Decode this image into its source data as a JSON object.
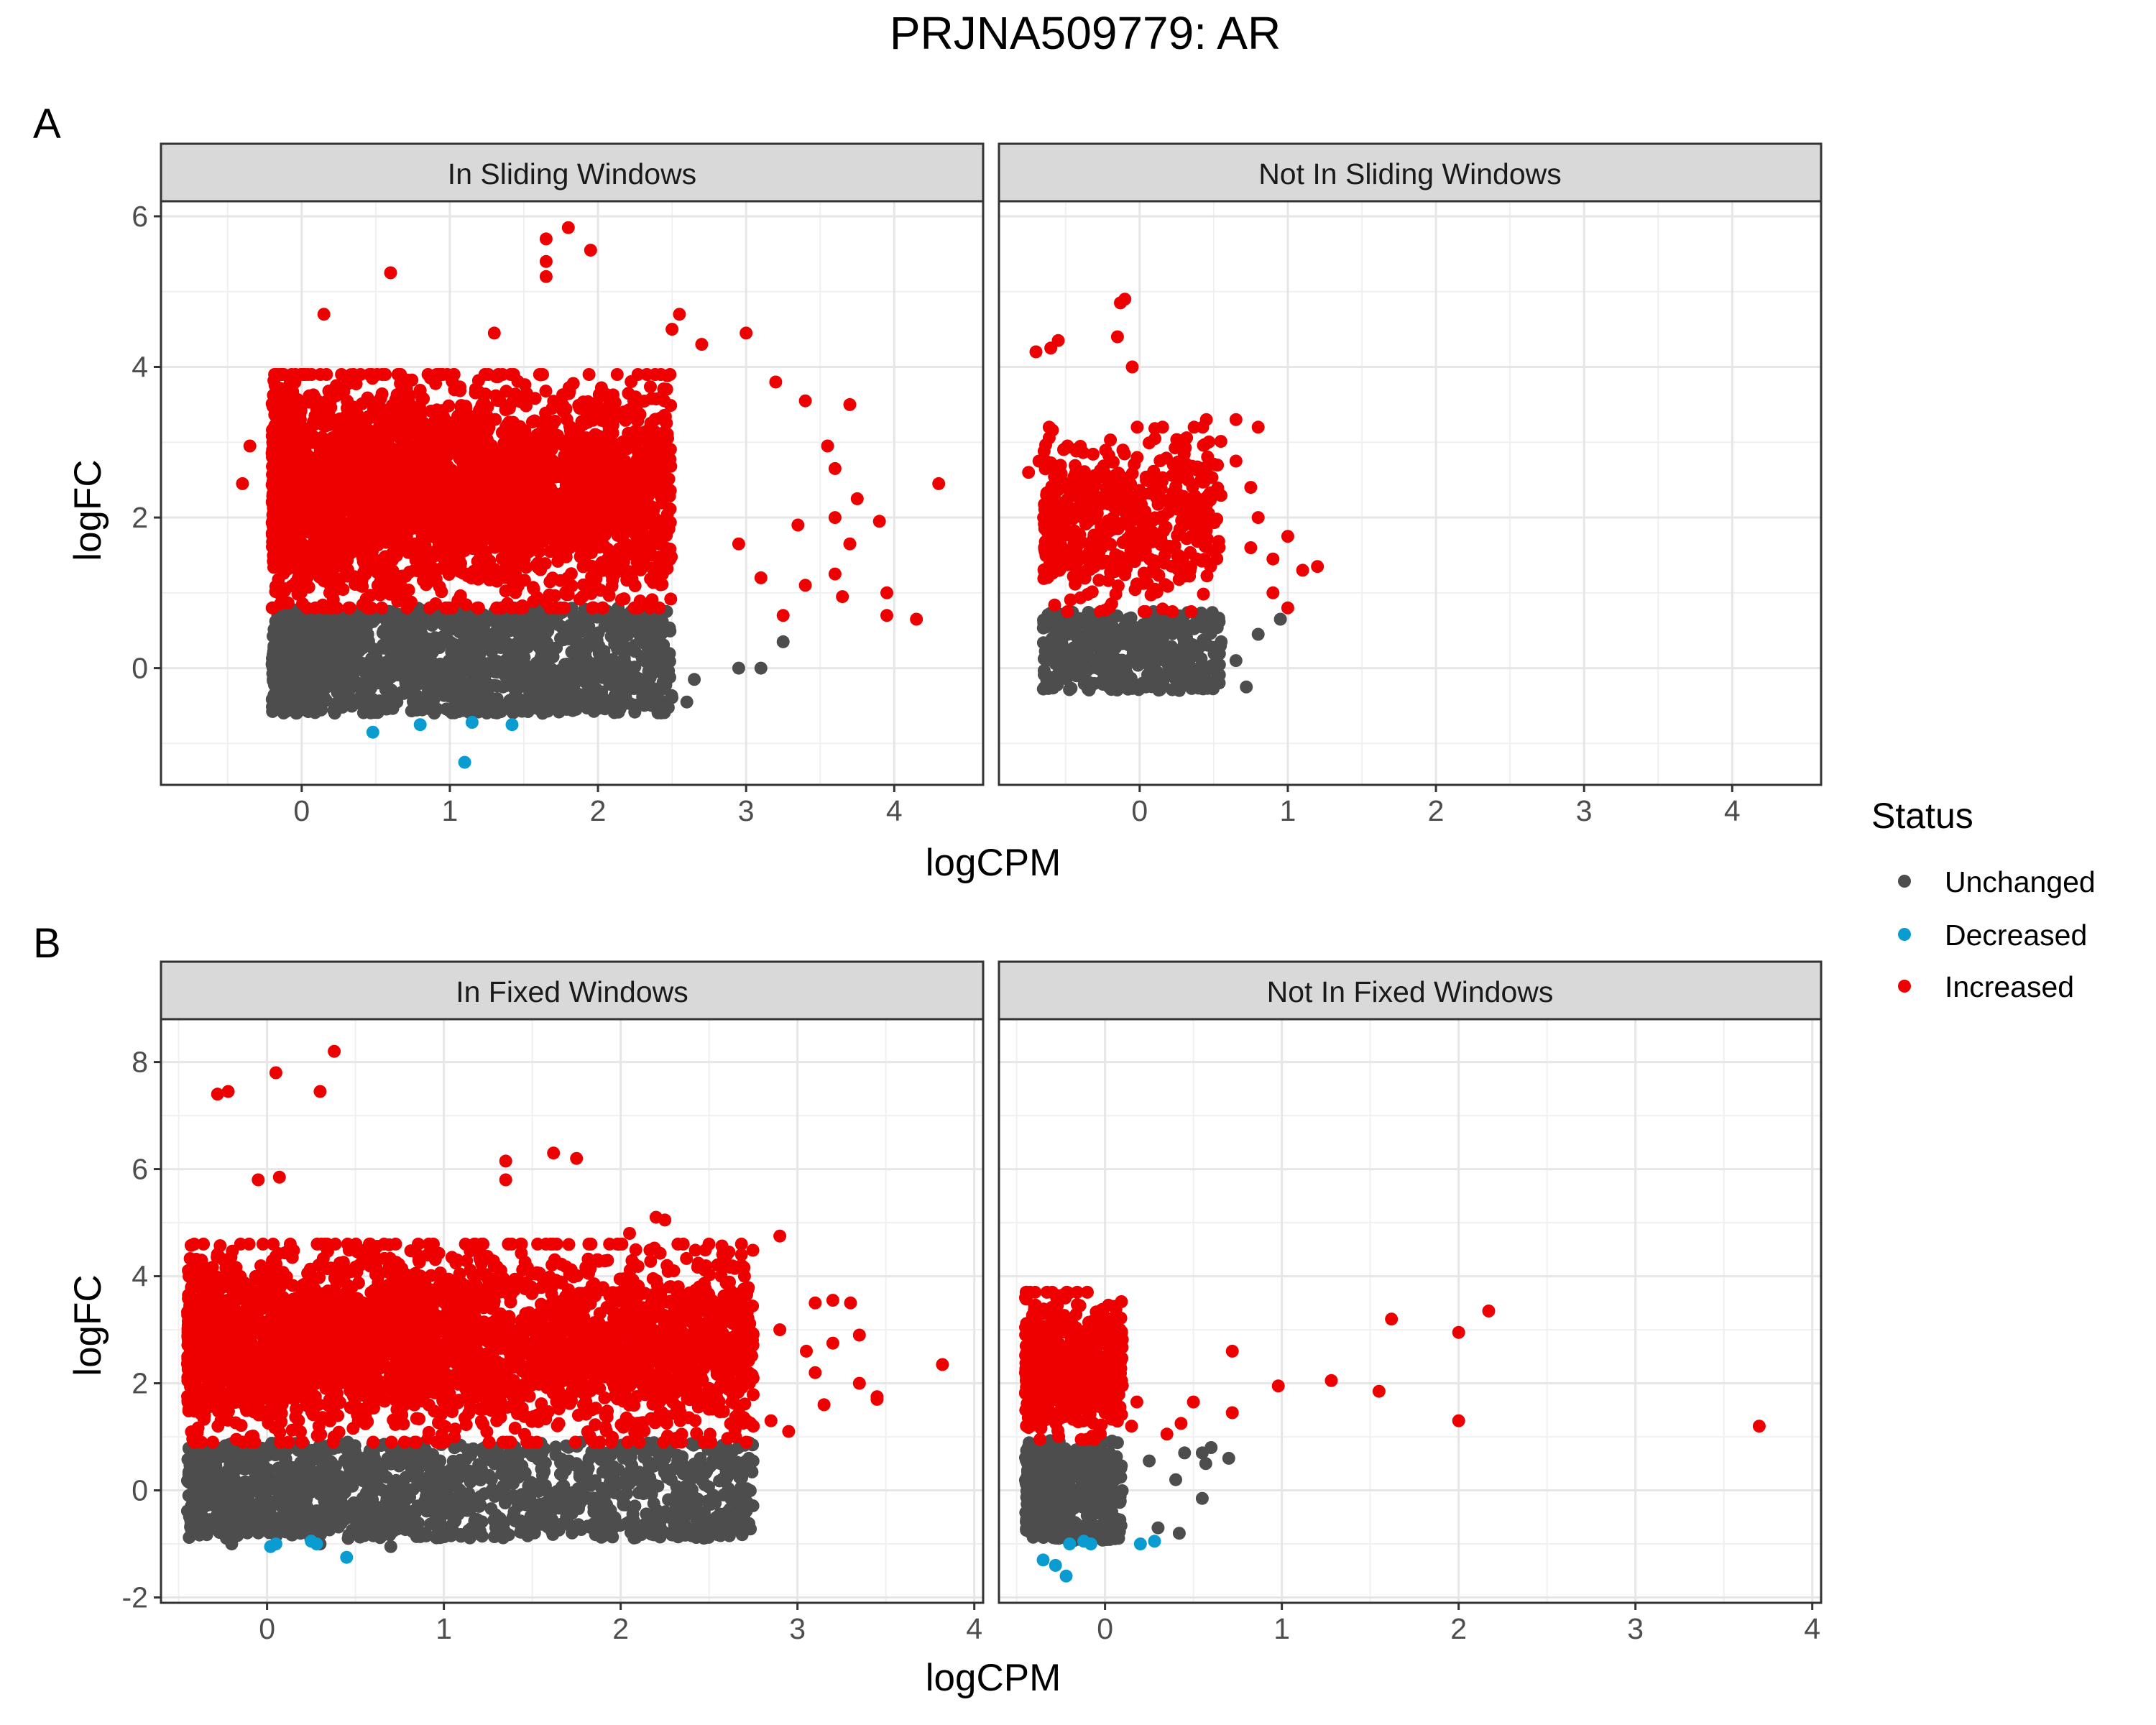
{
  "title": "PRJNA509779: AR",
  "legend": {
    "title": "Status",
    "items": [
      {
        "label": "Unchanged",
        "color": "#4D4D4D"
      },
      {
        "label": "Decreased",
        "color": "#0A9CD0"
      },
      {
        "label": "Increased",
        "color": "#EE0000"
      }
    ]
  },
  "chart_data": [
    {
      "type": "scatter",
      "tag": "A",
      "xlabel": "logCPM",
      "ylabel": "logFC",
      "xlim": [
        -0.95,
        4.6
      ],
      "ylim": [
        -1.55,
        6.2
      ],
      "xticks": [
        0,
        1,
        2,
        3,
        4
      ],
      "yticks": [
        0,
        2,
        4,
        6
      ],
      "grid": true,
      "legend_position": "right",
      "panels": [
        {
          "strip": "In Sliding Windows",
          "cloud_x": [
            -0.2,
            2.5
          ],
          "increased_range": [
            0.8,
            3.9
          ],
          "unchanged_range": [
            -0.6,
            0.8
          ],
          "increased_outliers": [
            [
              1.8,
              5.85
            ],
            [
              1.65,
              5.7
            ],
            [
              1.95,
              5.55
            ],
            [
              1.65,
              5.4
            ],
            [
              1.65,
              5.2
            ],
            [
              0.6,
              5.25
            ],
            [
              1.3,
              4.45
            ],
            [
              2.55,
              4.7
            ],
            [
              0.15,
              4.7
            ],
            [
              2.5,
              4.5
            ],
            [
              3.0,
              4.45
            ],
            [
              2.7,
              4.3
            ],
            [
              3.2,
              3.8
            ],
            [
              3.4,
              3.55
            ],
            [
              3.7,
              3.5
            ],
            [
              3.55,
              2.95
            ],
            [
              3.6,
              2.65
            ],
            [
              3.75,
              2.25
            ],
            [
              3.6,
              2.0
            ],
            [
              3.35,
              1.9
            ],
            [
              3.9,
              1.95
            ],
            [
              3.7,
              1.65
            ],
            [
              3.6,
              1.25
            ],
            [
              3.65,
              0.95
            ],
            [
              3.4,
              1.1
            ],
            [
              4.3,
              2.45
            ],
            [
              3.95,
              1.0
            ],
            [
              3.95,
              0.7
            ],
            [
              4.15,
              0.65
            ],
            [
              -0.35,
              2.95
            ],
            [
              -0.4,
              2.45
            ],
            [
              2.95,
              1.65
            ],
            [
              3.1,
              1.2
            ],
            [
              3.25,
              0.7
            ]
          ],
          "unchanged_outliers": [
            [
              1.7,
              -0.35
            ],
            [
              2.0,
              -0.5
            ],
            [
              2.6,
              -0.45
            ],
            [
              2.95,
              0.0
            ],
            [
              3.1,
              0.0
            ],
            [
              3.25,
              0.35
            ],
            [
              2.45,
              0.0
            ],
            [
              2.65,
              -0.15
            ],
            [
              -0.1,
              0.35
            ],
            [
              0.05,
              -0.2
            ]
          ],
          "decreased": [
            [
              0.48,
              -0.85
            ],
            [
              0.8,
              -0.75
            ],
            [
              1.15,
              -0.72
            ],
            [
              1.42,
              -0.75
            ],
            [
              1.1,
              -1.25
            ]
          ]
        },
        {
          "strip": "Not In Sliding Windows",
          "cloud_x": [
            -0.65,
            0.55
          ],
          "increased_range": [
            0.75,
            3.2
          ],
          "unchanged_range": [
            -0.3,
            0.75
          ],
          "increased_outliers": [
            [
              -0.1,
              4.9
            ],
            [
              -0.13,
              4.85
            ],
            [
              -0.15,
              4.4
            ],
            [
              -0.55,
              4.35
            ],
            [
              -0.6,
              4.25
            ],
            [
              -0.7,
              4.2
            ],
            [
              -0.05,
              4.0
            ],
            [
              0.45,
              3.3
            ],
            [
              0.65,
              3.3
            ],
            [
              0.8,
              3.2
            ],
            [
              0.65,
              2.75
            ],
            [
              0.75,
              2.4
            ],
            [
              0.8,
              2.0
            ],
            [
              1.0,
              1.75
            ],
            [
              1.2,
              1.35
            ],
            [
              1.1,
              1.3
            ],
            [
              0.9,
              1.0
            ],
            [
              1.0,
              0.8
            ],
            [
              0.75,
              1.6
            ],
            [
              0.9,
              1.45
            ],
            [
              -0.75,
              2.6
            ],
            [
              -0.68,
              2.75
            ],
            [
              -0.5,
              1.85
            ]
          ],
          "unchanged_outliers": [
            [
              0.72,
              -0.25
            ],
            [
              0.65,
              0.1
            ],
            [
              0.55,
              0.35
            ],
            [
              0.8,
              0.45
            ],
            [
              -0.25,
              0.6
            ],
            [
              0.95,
              0.65
            ]
          ],
          "decreased": []
        }
      ]
    },
    {
      "type": "scatter",
      "tag": "B",
      "xlabel": "logCPM",
      "ylabel": "logFC",
      "xlim": [
        -0.6,
        4.05
      ],
      "ylim": [
        -2.1,
        8.8
      ],
      "xticks": [
        0,
        1,
        2,
        3,
        4
      ],
      "yticks": [
        -2,
        0,
        2,
        4,
        6,
        8
      ],
      "grid": true,
      "legend_position": "right",
      "panels": [
        {
          "strip": "In Fixed Windows",
          "cloud_x": [
            -0.45,
            2.75
          ],
          "increased_range": [
            0.9,
            4.6
          ],
          "unchanged_range": [
            -0.9,
            0.9
          ],
          "increased_outliers": [
            [
              0.38,
              8.2
            ],
            [
              0.05,
              7.8
            ],
            [
              0.3,
              7.45
            ],
            [
              -0.28,
              7.4
            ],
            [
              -0.22,
              7.45
            ],
            [
              1.62,
              6.3
            ],
            [
              1.75,
              6.2
            ],
            [
              1.35,
              6.15
            ],
            [
              0.07,
              5.85
            ],
            [
              -0.05,
              5.8
            ],
            [
              1.35,
              5.8
            ],
            [
              2.25,
              5.05
            ],
            [
              2.2,
              5.1
            ],
            [
              2.05,
              4.8
            ],
            [
              2.9,
              4.75
            ],
            [
              2.6,
              4.4
            ],
            [
              2.7,
              4.0
            ],
            [
              2.3,
              4.1
            ],
            [
              3.2,
              3.55
            ],
            [
              3.1,
              3.5
            ],
            [
              3.3,
              3.5
            ],
            [
              2.9,
              3.0
            ],
            [
              3.35,
              2.9
            ],
            [
              3.2,
              2.75
            ],
            [
              3.05,
              2.6
            ],
            [
              3.1,
              2.2
            ],
            [
              3.35,
              2.0
            ],
            [
              3.15,
              1.6
            ],
            [
              3.45,
              1.7
            ],
            [
              3.82,
              2.35
            ],
            [
              3.45,
              1.75
            ],
            [
              2.85,
              1.3
            ],
            [
              2.95,
              1.1
            ],
            [
              2.75,
              1.2
            ]
          ],
          "unchanged_outliers": [
            [
              1.05,
              -0.75
            ],
            [
              1.3,
              -0.5
            ],
            [
              0.9,
              -0.85
            ],
            [
              0.7,
              -1.05
            ],
            [
              1.2,
              -0.3
            ],
            [
              1.4,
              -0.15
            ],
            [
              2.25,
              0.6
            ],
            [
              2.45,
              0.6
            ],
            [
              2.6,
              0.6
            ],
            [
              2.05,
              0.55
            ],
            [
              -0.2,
              -1.0
            ],
            [
              0.3,
              -1.0
            ]
          ],
          "decreased": [
            [
              0.02,
              -1.05
            ],
            [
              0.05,
              -1.0
            ],
            [
              0.25,
              -0.95
            ],
            [
              0.28,
              -1.0
            ],
            [
              0.45,
              -1.25
            ]
          ]
        },
        {
          "strip": "Not In Fixed Windows",
          "cloud_x": [
            -0.45,
            0.1
          ],
          "increased_range": [
            0.95,
            3.7
          ],
          "unchanged_range": [
            -0.95,
            0.95
          ],
          "increased_outliers": [
            [
              -0.1,
              3.7
            ],
            [
              -0.45,
              3.6
            ],
            [
              -0.27,
              3.45
            ],
            [
              2.17,
              3.35
            ],
            [
              1.62,
              3.2
            ],
            [
              2.0,
              2.95
            ],
            [
              -0.05,
              2.9
            ],
            [
              0.72,
              2.6
            ],
            [
              1.28,
              2.05
            ],
            [
              0.98,
              1.95
            ],
            [
              1.55,
              1.85
            ],
            [
              0.5,
              1.65
            ],
            [
              0.72,
              1.45
            ],
            [
              2.0,
              1.3
            ],
            [
              3.7,
              1.2
            ],
            [
              0.43,
              1.25
            ],
            [
              0.35,
              1.05
            ],
            [
              0.18,
              1.65
            ],
            [
              0.15,
              1.2
            ]
          ],
          "unchanged_outliers": [
            [
              0.25,
              0.55
            ],
            [
              0.45,
              0.7
            ],
            [
              0.55,
              0.7
            ],
            [
              0.6,
              0.8
            ],
            [
              0.7,
              0.6
            ],
            [
              0.57,
              0.5
            ],
            [
              0.42,
              -0.8
            ],
            [
              0.3,
              -0.7
            ],
            [
              0.55,
              -0.15
            ],
            [
              0.4,
              0.2
            ]
          ],
          "decreased": [
            [
              -0.35,
              -1.3
            ],
            [
              -0.28,
              -1.4
            ],
            [
              -0.22,
              -1.6
            ],
            [
              -0.2,
              -1.0
            ],
            [
              -0.12,
              -0.95
            ],
            [
              -0.08,
              -1.0
            ],
            [
              0.2,
              -1.0
            ],
            [
              0.28,
              -0.95
            ]
          ]
        }
      ]
    }
  ]
}
